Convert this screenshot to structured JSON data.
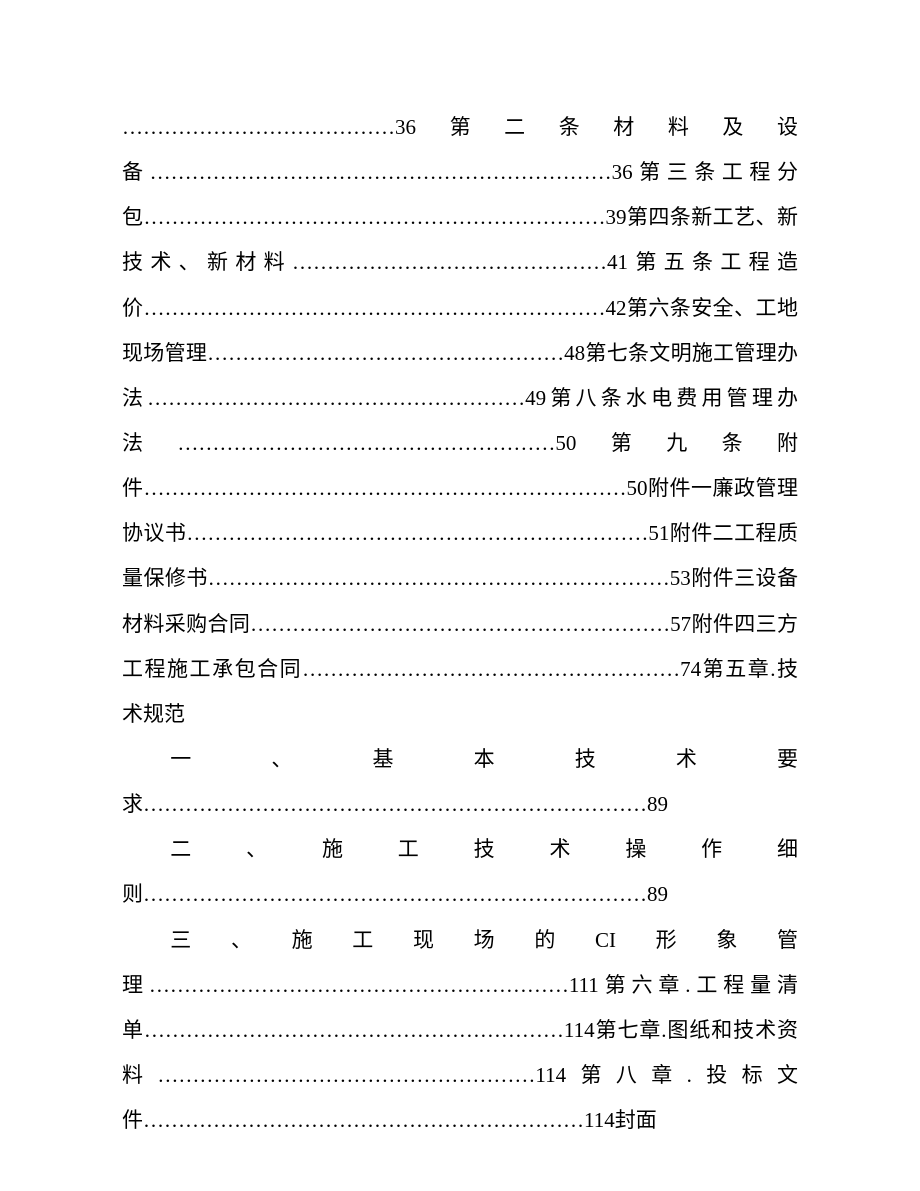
{
  "document": {
    "font_size_pt": 16,
    "font_family": "SimSun",
    "line_height": 2.15,
    "text_color": "#000000",
    "background_color": "#ffffff",
    "blocks": [
      {
        "text": "…………………………………36第二条材料及设备…………………………………………………………36第三条工程分包…………………………………………………………39第四条新工艺、新技术、新材料………………………………………41第五条工程造价…………………………………………………………42第六条安全、工地现场管理……………………………………………48第七条文明施工管理办法………………………………………………49第八条水电费用管理办法………………………………………………50第九条附件……………………………………………………………50附件一廉政管理协议书…………………………………………………………51附件二工程质量保修书…………………………………………………………53附件三设备材料采购合同……………………………………………………57附件四三方工程施工承包合同………………………………………………74第五章.技术规范",
        "indent": false
      },
      {
        "text": "一、基本技术要求………………………………………………………………89",
        "indent": true
      },
      {
        "text": "二、施工技术操作细则………………………………………………………………89",
        "indent": true
      },
      {
        "text": "三、施工现场的CI形象管理……………………………………………………111第六章.工程量清单……………………………………………………114第七章.图纸和技术资料………………………………………………114第八章.投标文件………………………………………………………114封面",
        "indent": true
      }
    ]
  }
}
